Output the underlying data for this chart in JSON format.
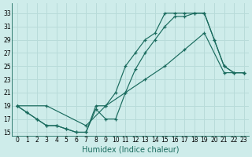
{
  "xlabel": "Humidex (Indice chaleur)",
  "bg_color": "#ceecea",
  "grid_color": "#b8dbd9",
  "line_color": "#1a6b5e",
  "xlim": [
    -0.5,
    23.5
  ],
  "ylim": [
    14.5,
    34.5
  ],
  "xticks": [
    0,
    1,
    2,
    3,
    4,
    5,
    6,
    7,
    8,
    9,
    10,
    11,
    12,
    13,
    14,
    15,
    16,
    17,
    18,
    19,
    20,
    21,
    22,
    23
  ],
  "yticks": [
    15,
    17,
    19,
    21,
    23,
    25,
    27,
    29,
    31,
    33
  ],
  "line1_x": [
    0,
    1,
    2,
    3,
    4,
    5,
    6,
    7,
    8,
    9,
    10,
    11,
    12,
    13,
    14,
    15,
    16,
    17,
    18,
    19,
    20,
    21,
    22,
    23
  ],
  "line1_y": [
    19,
    18,
    17,
    16,
    16,
    15.5,
    15,
    15,
    18.5,
    17,
    17,
    21,
    24.5,
    27,
    29,
    31,
    32.5,
    32.5,
    33,
    33,
    29,
    25,
    24,
    24
  ],
  "line2_x": [
    0,
    1,
    2,
    3,
    4,
    5,
    6,
    7,
    8,
    9,
    10,
    11,
    12,
    13,
    14,
    15,
    16,
    17,
    18,
    19,
    20,
    21,
    22,
    23
  ],
  "line2_y": [
    19,
    18,
    17,
    16,
    16,
    15.5,
    15,
    15,
    19,
    19,
    21,
    25,
    27,
    29,
    30,
    33,
    33,
    33,
    33,
    33,
    29,
    25,
    24,
    24
  ],
  "line3_x": [
    0,
    3,
    7,
    9,
    11,
    13,
    15,
    17,
    19,
    21,
    23
  ],
  "line3_y": [
    19,
    19,
    16,
    19,
    21,
    23,
    25,
    27.5,
    30,
    24,
    24
  ]
}
